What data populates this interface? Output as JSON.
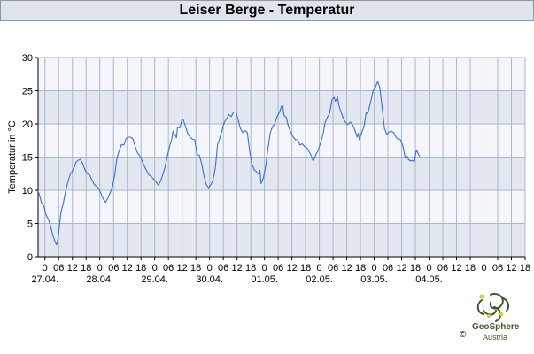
{
  "header": {
    "title": "Leiser Berge - Temperatur"
  },
  "branding": {
    "copyright": "©",
    "org_name": "GeoSphere",
    "org_sub": "Austria"
  },
  "colors": {
    "line": "#3a6fd8",
    "band_dark": "#e3e8f0",
    "band_light": "#f4f6fa",
    "grid": "#aab7cc",
    "title_bg": "#dfe3ea",
    "logo": "#3d5b2e"
  },
  "chart_data": {
    "type": "line",
    "title": "Leiser Berge - Temperatur",
    "ylabel": "Temperatur in °C",
    "xlabel": "",
    "ylim": [
      0,
      30
    ],
    "yticks": [
      0,
      5,
      10,
      15,
      20,
      25,
      30
    ],
    "grid": true,
    "x_unit": "hours",
    "xlim": [
      -3,
      210
    ],
    "xtick_hours": [
      0,
      6,
      12,
      18,
      24,
      30,
      36,
      42,
      48,
      54,
      60,
      66,
      72,
      78,
      84,
      90,
      96,
      102,
      108,
      114,
      120,
      126,
      132,
      138,
      144,
      150,
      156,
      162,
      168,
      174,
      180,
      186,
      192,
      198,
      204,
      210
    ],
    "xtick_labels": [
      "0",
      "06",
      "12",
      "18",
      "0",
      "06",
      "12",
      "18",
      "0",
      "06",
      "12",
      "18",
      "0",
      "06",
      "12",
      "18",
      "0",
      "06",
      "12",
      "18",
      "0",
      "06",
      "12",
      "18",
      "0",
      "06",
      "12",
      "18",
      "0",
      "06",
      "12",
      "18",
      "0",
      "06",
      "12",
      "18"
    ],
    "date_labels": [
      {
        "hour": 0,
        "label": "27.04."
      },
      {
        "hour": 24,
        "label": "28.04."
      },
      {
        "hour": 48,
        "label": "29.04."
      },
      {
        "hour": 72,
        "label": "30.04."
      },
      {
        "hour": 96,
        "label": "01.05."
      },
      {
        "hour": 120,
        "label": "02.05."
      },
      {
        "hour": 144,
        "label": "03.05."
      },
      {
        "hour": 168,
        "label": "04.05."
      }
    ],
    "series": [
      {
        "color": "#3a6fd8",
        "points": [
          [
            -3.5,
            10.3
          ],
          [
            -2.5,
            9.4
          ],
          [
            -1.5,
            8.1
          ],
          [
            -0.5,
            7.6
          ],
          [
            0.5,
            6.3
          ],
          [
            1.5,
            5.6
          ],
          [
            2.5,
            4.6
          ],
          [
            3.5,
            3.1
          ],
          [
            4.5,
            2.2
          ],
          [
            5.0,
            1.8
          ],
          [
            5.5,
            2.1
          ],
          [
            6.0,
            3.5
          ],
          [
            7.0,
            6.7
          ],
          [
            8.0,
            8.0
          ],
          [
            9.0,
            9.8
          ],
          [
            10.0,
            11.2
          ],
          [
            11.0,
            12.4
          ],
          [
            12.0,
            12.9
          ],
          [
            13.0,
            13.6
          ],
          [
            13.5,
            14.2
          ],
          [
            14.5,
            14.5
          ],
          [
            15.5,
            14.7
          ],
          [
            16.5,
            14.0
          ],
          [
            17.5,
            13.1
          ],
          [
            18.5,
            12.5
          ],
          [
            19.5,
            12.3
          ],
          [
            20.5,
            11.6
          ],
          [
            21.5,
            10.9
          ],
          [
            22.5,
            10.6
          ],
          [
            23.5,
            10.3
          ],
          [
            24.5,
            9.5
          ],
          [
            25.5,
            8.7
          ],
          [
            26.5,
            8.2
          ],
          [
            27.5,
            8.8
          ],
          [
            28.5,
            9.6
          ],
          [
            29.5,
            10.5
          ],
          [
            30.5,
            12.3
          ],
          [
            31.5,
            14.9
          ],
          [
            32.5,
            16.0
          ],
          [
            33.5,
            16.9
          ],
          [
            34.5,
            16.8
          ],
          [
            35.5,
            17.8
          ],
          [
            36.5,
            18.0
          ],
          [
            37.5,
            18.0
          ],
          [
            38.5,
            17.7
          ],
          [
            39.5,
            16.6
          ],
          [
            40.5,
            15.6
          ],
          [
            41.5,
            15.2
          ],
          [
            42.5,
            14.4
          ],
          [
            43.5,
            13.6
          ],
          [
            44.5,
            12.9
          ],
          [
            45.5,
            12.3
          ],
          [
            46.5,
            12.1
          ],
          [
            47.5,
            11.7
          ],
          [
            48.5,
            11.3
          ],
          [
            49.5,
            10.8
          ],
          [
            50.5,
            11.3
          ],
          [
            51.5,
            12.3
          ],
          [
            52.5,
            13.5
          ],
          [
            53.5,
            15.1
          ],
          [
            54.5,
            16.6
          ],
          [
            55.5,
            17.8
          ],
          [
            56.0,
            18.9
          ],
          [
            57.0,
            18.3
          ],
          [
            57.5,
            17.9
          ],
          [
            58.0,
            19.5
          ],
          [
            59.0,
            19.4
          ],
          [
            60.0,
            20.8
          ],
          [
            60.5,
            20.6
          ],
          [
            61.5,
            19.6
          ],
          [
            62.5,
            18.5
          ],
          [
            63.5,
            18.0
          ],
          [
            64.5,
            17.7
          ],
          [
            65.5,
            17.6
          ],
          [
            66.5,
            15.4
          ],
          [
            67.5,
            15.3
          ],
          [
            68.5,
            14.1
          ],
          [
            69.5,
            12.2
          ],
          [
            70.5,
            10.9
          ],
          [
            71.5,
            10.4
          ],
          [
            72.5,
            10.8
          ],
          [
            73.5,
            11.5
          ],
          [
            74.5,
            13.3
          ],
          [
            75.5,
            16.9
          ],
          [
            76.5,
            17.9
          ],
          [
            77.5,
            19.1
          ],
          [
            78.5,
            20.3
          ],
          [
            79.5,
            20.8
          ],
          [
            80.5,
            21.4
          ],
          [
            81.5,
            21.1
          ],
          [
            82.5,
            21.8
          ],
          [
            83.5,
            21.8
          ],
          [
            84.5,
            20.6
          ],
          [
            85.5,
            19.3
          ],
          [
            86.5,
            18.7
          ],
          [
            87.5,
            19.0
          ],
          [
            88.5,
            18.7
          ],
          [
            89.5,
            16.0
          ],
          [
            90.5,
            14.0
          ],
          [
            91.5,
            13.1
          ],
          [
            92.5,
            12.8
          ],
          [
            93.5,
            12.4
          ],
          [
            94.0,
            13.0
          ],
          [
            94.5,
            11.0
          ],
          [
            95.5,
            11.8
          ],
          [
            96.5,
            13.5
          ],
          [
            97.5,
            16.2
          ],
          [
            98.5,
            18.6
          ],
          [
            99.5,
            19.6
          ],
          [
            100.5,
            20.0
          ],
          [
            101.5,
            21.1
          ],
          [
            102.5,
            21.7
          ],
          [
            103.5,
            22.7
          ],
          [
            104.0,
            22.7
          ],
          [
            104.5,
            21.3
          ],
          [
            105.5,
            21.0
          ],
          [
            106.5,
            19.6
          ],
          [
            107.5,
            18.8
          ],
          [
            108.5,
            18.1
          ],
          [
            109.5,
            17.6
          ],
          [
            110.5,
            17.6
          ],
          [
            111.5,
            16.8
          ],
          [
            112.5,
            17.0
          ],
          [
            113.5,
            16.6
          ],
          [
            114.5,
            16.4
          ],
          [
            115.5,
            15.8
          ],
          [
            116.5,
            15.2
          ],
          [
            117.0,
            14.6
          ],
          [
            117.5,
            14.5
          ],
          [
            118.5,
            15.4
          ],
          [
            119.5,
            16.0
          ],
          [
            120.5,
            17.1
          ],
          [
            121.5,
            18.3
          ],
          [
            122.5,
            20.2
          ],
          [
            123.5,
            21.0
          ],
          [
            124.5,
            21.6
          ],
          [
            125.5,
            23.6
          ],
          [
            126.5,
            24.0
          ],
          [
            127.0,
            23.4
          ],
          [
            127.5,
            23.7
          ],
          [
            128.0,
            24.0
          ],
          [
            128.5,
            22.8
          ],
          [
            129.5,
            21.8
          ],
          [
            130.5,
            20.8
          ],
          [
            131.5,
            20.2
          ],
          [
            132.5,
            19.9
          ],
          [
            133.5,
            20.3
          ],
          [
            134.5,
            19.9
          ],
          [
            135.5,
            19.1
          ],
          [
            136.5,
            18.0
          ],
          [
            137.0,
            18.6
          ],
          [
            137.5,
            17.6
          ],
          [
            138.5,
            18.7
          ],
          [
            139.5,
            19.6
          ],
          [
            140.5,
            21.7
          ],
          [
            141.0,
            21.6
          ],
          [
            141.5,
            22.0
          ],
          [
            142.5,
            23.4
          ],
          [
            143.5,
            25.0
          ],
          [
            144.5,
            25.5
          ],
          [
            145.5,
            26.4
          ],
          [
            146.5,
            25.4
          ],
          [
            147.5,
            22.3
          ],
          [
            148.5,
            19.3
          ],
          [
            149.5,
            18.4
          ],
          [
            150.5,
            18.8
          ],
          [
            151.5,
            18.9
          ],
          [
            152.5,
            18.7
          ],
          [
            153.5,
            18.0
          ],
          [
            154.5,
            17.7
          ],
          [
            155.5,
            17.6
          ],
          [
            156.5,
            16.7
          ],
          [
            157.5,
            15.0
          ],
          [
            158.5,
            15.1
          ],
          [
            159.0,
            14.6
          ],
          [
            160.0,
            14.4
          ],
          [
            161.0,
            14.5
          ],
          [
            161.5,
            14.3
          ],
          [
            162.5,
            16.1
          ],
          [
            163.5,
            15.3
          ],
          [
            164.0,
            15.1
          ]
        ]
      }
    ]
  }
}
